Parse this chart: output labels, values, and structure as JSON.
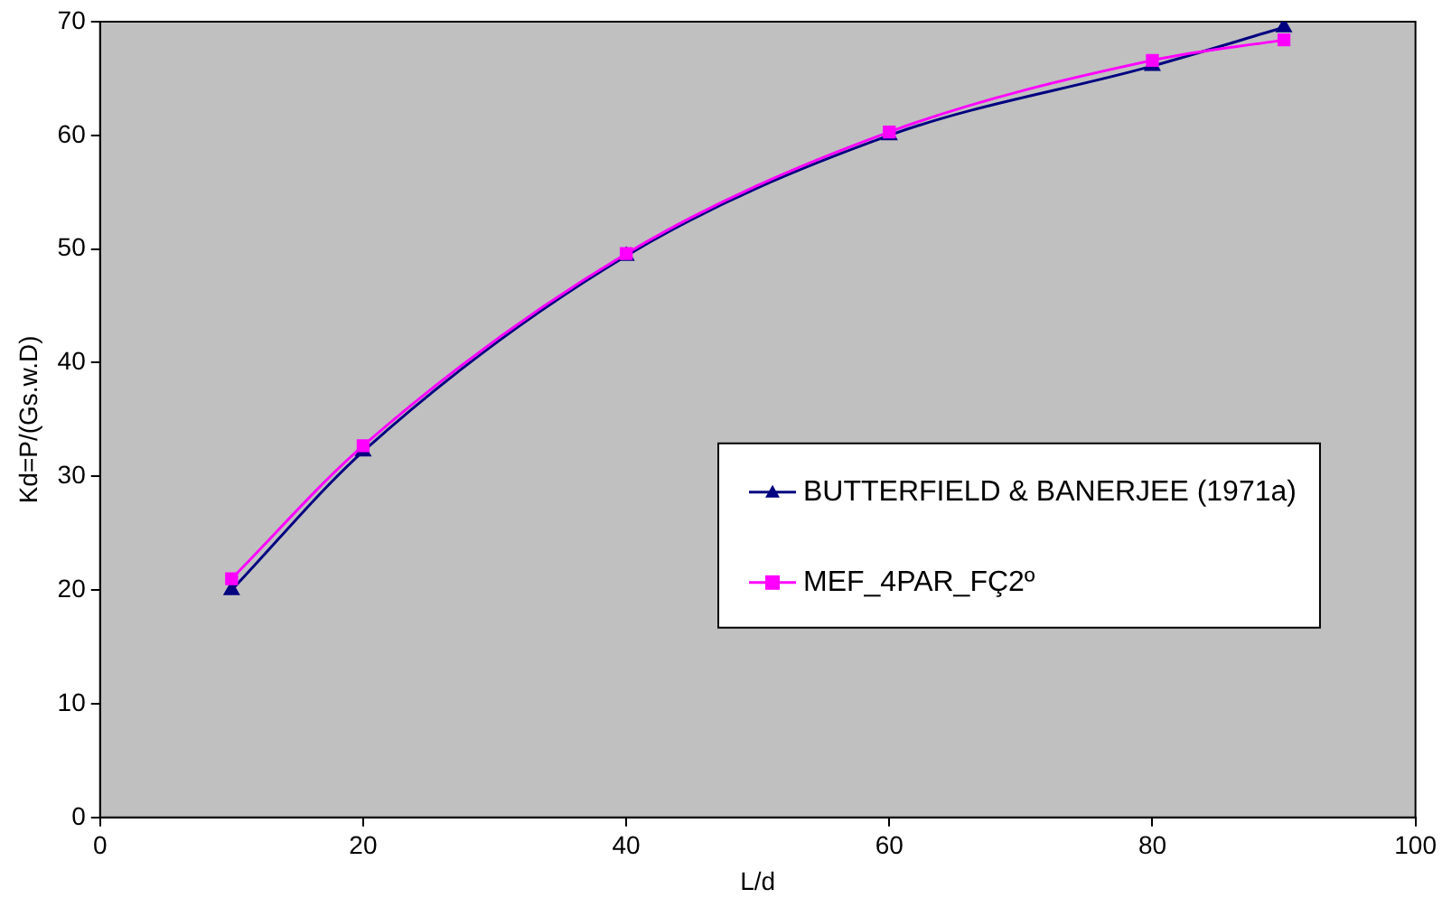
{
  "chart_data": {
    "type": "line",
    "xlabel": "L/d",
    "ylabel": "Kd=P/(Gs.w.D)",
    "x": [
      10,
      20,
      40,
      60,
      80,
      90
    ],
    "series": [
      {
        "name": "BUTTERFIELD & BANERJEE (1971a)",
        "color": "#000080",
        "marker": "triangle",
        "values": [
          20,
          32.2,
          49.4,
          60,
          66.1,
          69.5
        ]
      },
      {
        "name": "MEF_4PAR_FÇ2º",
        "color": "#ff00ff",
        "marker": "square",
        "values": [
          21,
          32.7,
          49.6,
          60.3,
          66.6,
          68.4
        ]
      }
    ],
    "xlim": [
      0,
      100
    ],
    "xticks": [
      0,
      20,
      40,
      60,
      80,
      100
    ],
    "ylim": [
      0,
      70
    ],
    "yticks": [
      0,
      10,
      20,
      30,
      40,
      50,
      60,
      70
    ],
    "grid": false,
    "legend": "right",
    "line_style": "solid"
  }
}
